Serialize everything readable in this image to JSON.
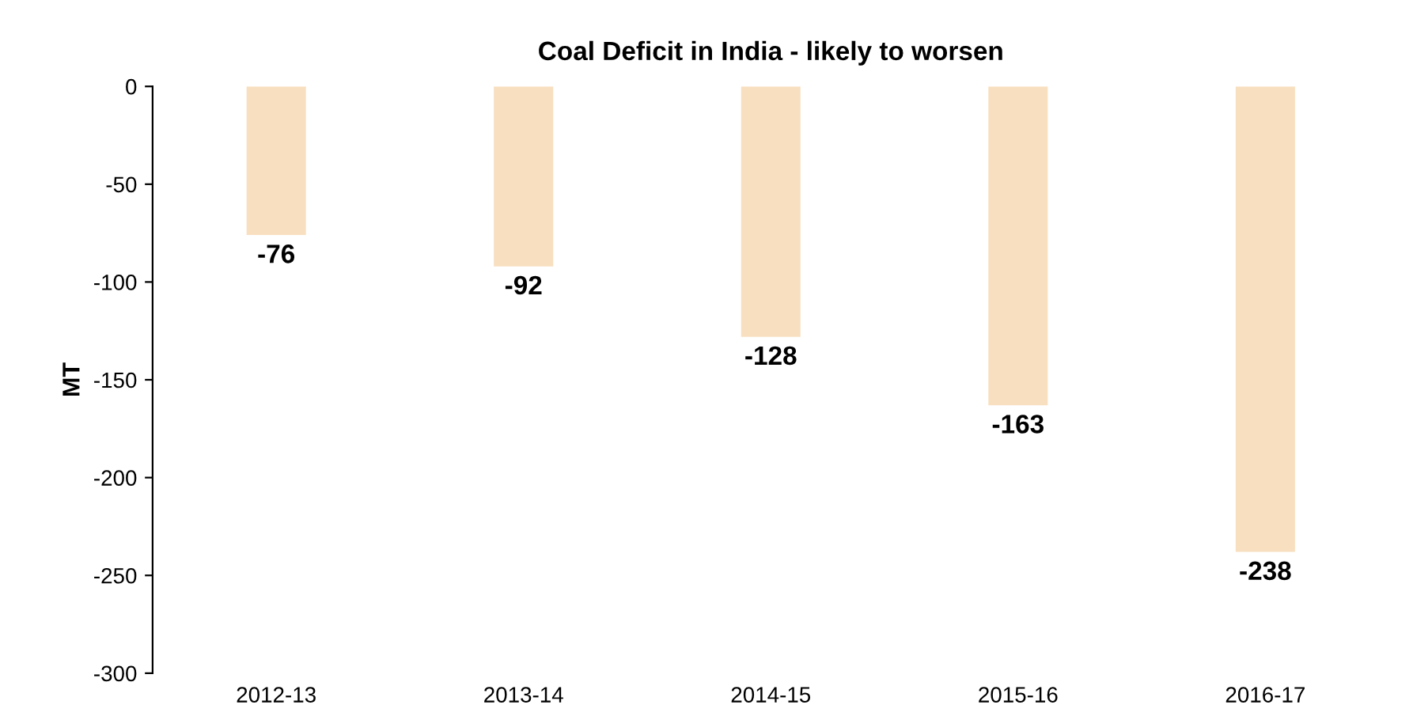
{
  "chart_data": {
    "type": "bar",
    "title": "Coal Deficit in India - likely to worsen",
    "ylabel": "MT",
    "categories": [
      "2012-13",
      "2013-14",
      "2014-15",
      "2015-16",
      "2016-17"
    ],
    "series": [
      {
        "color": "#f8dfbf",
        "values": [
          -76,
          -92,
          -128,
          -163,
          -238
        ]
      }
    ],
    "ylim": [
      -300,
      0
    ],
    "yticks": [
      -300,
      -250,
      -200,
      -150,
      -100,
      -50,
      0
    ],
    "data_labels": true,
    "grid": false,
    "legend": false
  }
}
